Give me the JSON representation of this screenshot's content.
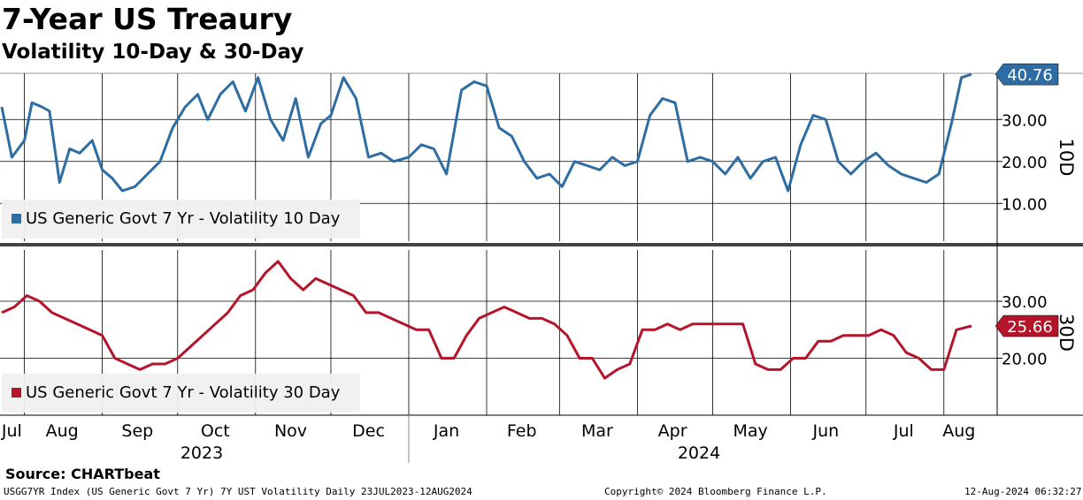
{
  "title": "7-Year US Treaury",
  "subtitle": "Volatility 10-Day & 30-Day",
  "source": "Source: CHARTbeat",
  "footer": {
    "left": "USGG7YR Index (US Generic Govt 7 Yr) 7Y UST Volatility  Daily 23JUL2023-12AUG2024",
    "center": "Copyright© 2024 Bloomberg Finance L.P.",
    "right": "12-Aug-2024 06:32:27"
  },
  "colors": {
    "series10": "#2e6da4",
    "series30": "#b5152b"
  },
  "chart_data": [
    {
      "type": "line",
      "title": "7-Year US Treaury",
      "ylabel": "10D",
      "ylim": [
        1,
        41
      ],
      "yticks": [
        "10.00",
        "20.00",
        "30.00"
      ],
      "ytick_values": [
        10,
        20,
        30
      ],
      "grid": true,
      "legend": "bottom-left",
      "last_value_label": "40.76",
      "series": [
        {
          "name": "US Generic Govt 7 Yr - Volatility 10 Day",
          "x": [
            "2023-07-23",
            "2023-07-27",
            "2023-08-01",
            "2023-08-04",
            "2023-08-08",
            "2023-08-11",
            "2023-08-15",
            "2023-08-19",
            "2023-08-23",
            "2023-08-28",
            "2023-09-01",
            "2023-09-05",
            "2023-09-09",
            "2023-09-14",
            "2023-09-19",
            "2023-09-24",
            "2023-09-29",
            "2023-10-04",
            "2023-10-09",
            "2023-10-13",
            "2023-10-18",
            "2023-10-23",
            "2023-10-28",
            "2023-11-02",
            "2023-11-07",
            "2023-11-12",
            "2023-11-17",
            "2023-11-22",
            "2023-11-27",
            "2023-12-01",
            "2023-12-06",
            "2023-12-11",
            "2023-12-16",
            "2023-12-21",
            "2023-12-26",
            "2024-01-01",
            "2024-01-06",
            "2024-01-11",
            "2024-01-16",
            "2024-01-22",
            "2024-01-27",
            "2024-02-01",
            "2024-02-06",
            "2024-02-11",
            "2024-02-16",
            "2024-02-21",
            "2024-02-26",
            "2024-03-02",
            "2024-03-07",
            "2024-03-12",
            "2024-03-17",
            "2024-03-22",
            "2024-03-27",
            "2024-04-01",
            "2024-04-06",
            "2024-04-11",
            "2024-04-16",
            "2024-04-21",
            "2024-04-26",
            "2024-05-01",
            "2024-05-06",
            "2024-05-11",
            "2024-05-16",
            "2024-05-21",
            "2024-05-26",
            "2024-05-31",
            "2024-06-05",
            "2024-06-10",
            "2024-06-15",
            "2024-06-20",
            "2024-06-25",
            "2024-06-30",
            "2024-07-05",
            "2024-07-10",
            "2024-07-15",
            "2024-07-20",
            "2024-07-25",
            "2024-07-30",
            "2024-08-04",
            "2024-08-08",
            "2024-08-12"
          ],
          "values": [
            33,
            21,
            25,
            34,
            33,
            32,
            15,
            23,
            22,
            25,
            18,
            16,
            13,
            14,
            17,
            20,
            28,
            33,
            36,
            30,
            36,
            39,
            32,
            40,
            30,
            25,
            35,
            21,
            29,
            31,
            40,
            35,
            21,
            22,
            20,
            21,
            24,
            23,
            17,
            37,
            39,
            38,
            28,
            26,
            20,
            16,
            17,
            14,
            20,
            19,
            18,
            21,
            19,
            20,
            31,
            35,
            34,
            20,
            21,
            20,
            17,
            21,
            16,
            20,
            21,
            13,
            24,
            31,
            30,
            20,
            17,
            20,
            22,
            19,
            17,
            16,
            15,
            17,
            29,
            40,
            40.76
          ]
        }
      ]
    },
    {
      "type": "line",
      "ylabel": "30D",
      "ylim": [
        10,
        39
      ],
      "yticks": [
        "20.00",
        "30.00"
      ],
      "ytick_values": [
        20,
        30
      ],
      "grid": true,
      "legend": "bottom-left",
      "last_value_label": "25.66",
      "series": [
        {
          "name": "US Generic Govt 7 Yr - Volatility 30 Day",
          "x": [
            "2023-07-23",
            "2023-07-28",
            "2023-08-02",
            "2023-08-07",
            "2023-08-12",
            "2023-08-17",
            "2023-08-22",
            "2023-08-27",
            "2023-09-01",
            "2023-09-06",
            "2023-09-11",
            "2023-09-16",
            "2023-09-21",
            "2023-09-26",
            "2023-10-01",
            "2023-10-06",
            "2023-10-11",
            "2023-10-16",
            "2023-10-21",
            "2023-10-26",
            "2023-10-31",
            "2023-11-05",
            "2023-11-10",
            "2023-11-15",
            "2023-11-20",
            "2023-11-25",
            "2023-11-30",
            "2023-12-05",
            "2023-12-10",
            "2023-12-15",
            "2023-12-20",
            "2023-12-25",
            "2023-12-30",
            "2024-01-04",
            "2024-01-09",
            "2024-01-14",
            "2024-01-19",
            "2024-01-24",
            "2024-01-29",
            "2024-02-03",
            "2024-02-08",
            "2024-02-13",
            "2024-02-18",
            "2024-02-23",
            "2024-02-28",
            "2024-03-04",
            "2024-03-09",
            "2024-03-14",
            "2024-03-19",
            "2024-03-24",
            "2024-03-29",
            "2024-04-03",
            "2024-04-08",
            "2024-04-13",
            "2024-04-18",
            "2024-04-23",
            "2024-04-28",
            "2024-05-03",
            "2024-05-08",
            "2024-05-13",
            "2024-05-18",
            "2024-05-23",
            "2024-05-28",
            "2024-06-02",
            "2024-06-07",
            "2024-06-12",
            "2024-06-17",
            "2024-06-22",
            "2024-06-27",
            "2024-07-02",
            "2024-07-07",
            "2024-07-12",
            "2024-07-17",
            "2024-07-22",
            "2024-07-27",
            "2024-08-01",
            "2024-08-06",
            "2024-08-12"
          ],
          "values": [
            28,
            29,
            31,
            30,
            28,
            27,
            26,
            25,
            24,
            20,
            19,
            18,
            19,
            19,
            20,
            22,
            24,
            26,
            28,
            31,
            32,
            35,
            37,
            34,
            32,
            34,
            33,
            32,
            31,
            28,
            28,
            27,
            26,
            25,
            25,
            20,
            20,
            24,
            27,
            28,
            29,
            28,
            27,
            27,
            26,
            24,
            20,
            20,
            16.5,
            18,
            19,
            25,
            25,
            26,
            25,
            26,
            26,
            26,
            26,
            26,
            19,
            18,
            18,
            20,
            20,
            23,
            23,
            24,
            24,
            24,
            25,
            24,
            21,
            20,
            18,
            18,
            25,
            25.66
          ]
        }
      ]
    }
  ],
  "xaxis": {
    "months": [
      "Jul",
      "Aug",
      "Sep",
      "Oct",
      "Nov",
      "Dec",
      "Jan",
      "Feb",
      "Mar",
      "Apr",
      "May",
      "Jun",
      "Jul",
      "Aug"
    ],
    "years": [
      "2023",
      "2024"
    ]
  }
}
